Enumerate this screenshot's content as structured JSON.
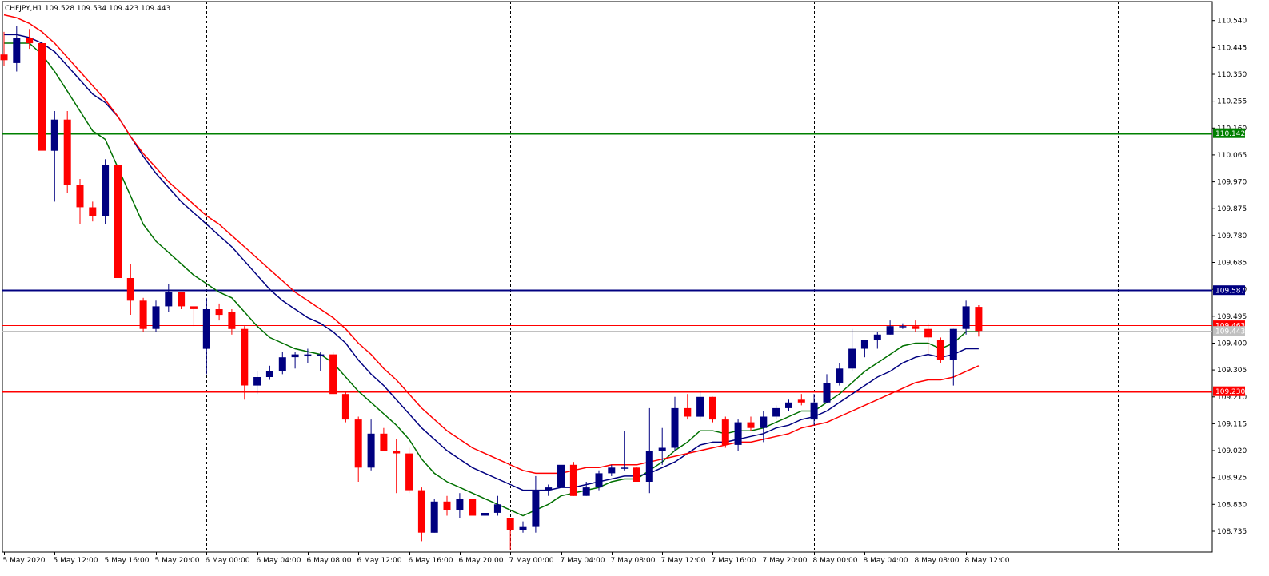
{
  "symbol_header": {
    "text": "CHFJPY,H1  109.528 109.534 109.423 109.443"
  },
  "colors": {
    "bull_candle": "#000080",
    "bear_candle": "#ff0000",
    "ma_fast": "#007000",
    "ma_mid": "#000080",
    "ma_slow": "#ff0000",
    "line_110142": "#008000",
    "line_109587": "#000080",
    "line_109230": "#ff0000",
    "bid_line": "#c0c0c0",
    "ask_line": "#ff0000"
  },
  "chart_data": {
    "type": "candlestick",
    "symbol": "CHFJPY",
    "timeframe": "H1",
    "ohlc_header": {
      "open": 109.528,
      "high": 109.534,
      "low": 109.423,
      "close": 109.443
    },
    "price_axis": {
      "range": [
        108.67,
        110.59
      ],
      "ticks": [
        "110.540",
        "110.445",
        "110.350",
        "110.255",
        "110.160",
        "110.065",
        "109.970",
        "109.875",
        "109.780",
        "109.685",
        "109.590",
        "109.495",
        "109.400",
        "109.305",
        "109.210",
        "109.115",
        "109.020",
        "108.925",
        "108.830",
        "108.735"
      ]
    },
    "time_axis": {
      "labels": [
        "5 May 2020",
        "5 May 12:00",
        "5 May 16:00",
        "5 May 20:00",
        "6 May 00:00",
        "6 May 04:00",
        "6 May 08:00",
        "6 May 12:00",
        "6 May 16:00",
        "6 May 20:00",
        "7 May 00:00",
        "7 May 04:00",
        "7 May 08:00",
        "7 May 12:00",
        "7 May 16:00",
        "7 May 20:00",
        "8 May 00:00",
        "8 May 04:00",
        "8 May 08:00",
        "8 May 12:00"
      ],
      "label_bar_index": [
        0,
        4,
        8,
        12,
        16,
        20,
        24,
        28,
        32,
        36,
        40,
        44,
        48,
        52,
        56,
        60,
        64,
        68,
        72,
        76
      ],
      "day_separators_bar_index": [
        16,
        40,
        64,
        88
      ]
    },
    "horizontal_lines": [
      {
        "price": 110.142,
        "label": "110.142",
        "color_key": "line_110142"
      },
      {
        "price": 109.587,
        "label": "109.587",
        "color_key": "line_109587"
      },
      {
        "price": 109.23,
        "label": "109.230",
        "color_key": "line_109230"
      }
    ],
    "price_labels": [
      {
        "price": 109.463,
        "label": "109.463",
        "color_key": "ask_line"
      },
      {
        "price": 109.443,
        "label": "109.443",
        "color_key": "bid_line"
      }
    ],
    "candles": [
      {
        "o": 110.42,
        "h": 110.5,
        "l": 110.38,
        "c": 110.4
      },
      {
        "o": 110.39,
        "h": 110.52,
        "l": 110.36,
        "c": 110.48
      },
      {
        "o": 110.48,
        "h": 110.51,
        "l": 110.44,
        "c": 110.46
      },
      {
        "o": 110.46,
        "h": 110.58,
        "l": 110.08,
        "c": 110.08
      },
      {
        "o": 110.08,
        "h": 110.22,
        "l": 109.9,
        "c": 110.19
      },
      {
        "o": 110.19,
        "h": 110.22,
        "l": 109.93,
        "c": 109.96
      },
      {
        "o": 109.96,
        "h": 109.98,
        "l": 109.82,
        "c": 109.88
      },
      {
        "o": 109.88,
        "h": 109.9,
        "l": 109.83,
        "c": 109.85
      },
      {
        "o": 109.85,
        "h": 110.05,
        "l": 109.82,
        "c": 110.03
      },
      {
        "o": 110.03,
        "h": 110.05,
        "l": 109.63,
        "c": 109.63
      },
      {
        "o": 109.63,
        "h": 109.68,
        "l": 109.5,
        "c": 109.55
      },
      {
        "o": 109.55,
        "h": 109.56,
        "l": 109.44,
        "c": 109.45
      },
      {
        "o": 109.45,
        "h": 109.55,
        "l": 109.44,
        "c": 109.53
      },
      {
        "o": 109.53,
        "h": 109.61,
        "l": 109.51,
        "c": 109.58
      },
      {
        "o": 109.58,
        "h": 109.58,
        "l": 109.52,
        "c": 109.53
      },
      {
        "o": 109.53,
        "h": 109.53,
        "l": 109.46,
        "c": 109.52
      },
      {
        "o": 109.38,
        "h": 109.56,
        "l": 109.29,
        "c": 109.52
      },
      {
        "o": 109.52,
        "h": 109.54,
        "l": 109.48,
        "c": 109.5
      },
      {
        "o": 109.51,
        "h": 109.52,
        "l": 109.43,
        "c": 109.45
      },
      {
        "o": 109.45,
        "h": 109.46,
        "l": 109.2,
        "c": 109.25
      },
      {
        "o": 109.25,
        "h": 109.3,
        "l": 109.22,
        "c": 109.28
      },
      {
        "o": 109.28,
        "h": 109.32,
        "l": 109.27,
        "c": 109.3
      },
      {
        "o": 109.3,
        "h": 109.37,
        "l": 109.29,
        "c": 109.35
      },
      {
        "o": 109.35,
        "h": 109.37,
        "l": 109.31,
        "c": 109.36
      },
      {
        "o": 109.36,
        "h": 109.38,
        "l": 109.33,
        "c": 109.36
      },
      {
        "o": 109.36,
        "h": 109.37,
        "l": 109.3,
        "c": 109.36
      },
      {
        "o": 109.36,
        "h": 109.37,
        "l": 109.22,
        "c": 109.22
      },
      {
        "o": 109.22,
        "h": 109.23,
        "l": 109.12,
        "c": 109.13
      },
      {
        "o": 109.13,
        "h": 109.14,
        "l": 108.91,
        "c": 108.96
      },
      {
        "o": 108.96,
        "h": 109.13,
        "l": 108.95,
        "c": 109.08
      },
      {
        "o": 109.08,
        "h": 109.1,
        "l": 109.02,
        "c": 109.02
      },
      {
        "o": 109.02,
        "h": 109.06,
        "l": 108.87,
        "c": 109.01
      },
      {
        "o": 109.01,
        "h": 109.03,
        "l": 108.87,
        "c": 108.88
      },
      {
        "o": 108.88,
        "h": 108.89,
        "l": 108.7,
        "c": 108.73
      },
      {
        "o": 108.73,
        "h": 108.85,
        "l": 108.73,
        "c": 108.84
      },
      {
        "o": 108.84,
        "h": 108.86,
        "l": 108.79,
        "c": 108.81
      },
      {
        "o": 108.81,
        "h": 108.87,
        "l": 108.78,
        "c": 108.85
      },
      {
        "o": 108.85,
        "h": 108.85,
        "l": 108.79,
        "c": 108.79
      },
      {
        "o": 108.79,
        "h": 108.81,
        "l": 108.77,
        "c": 108.8
      },
      {
        "o": 108.8,
        "h": 108.86,
        "l": 108.79,
        "c": 108.83
      },
      {
        "o": 108.78,
        "h": 108.78,
        "l": 108.67,
        "c": 108.74
      },
      {
        "o": 108.74,
        "h": 108.77,
        "l": 108.73,
        "c": 108.75
      },
      {
        "o": 108.75,
        "h": 108.93,
        "l": 108.73,
        "c": 108.88
      },
      {
        "o": 108.88,
        "h": 108.9,
        "l": 108.86,
        "c": 108.89
      },
      {
        "o": 108.89,
        "h": 108.99,
        "l": 108.86,
        "c": 108.97
      },
      {
        "o": 108.97,
        "h": 108.98,
        "l": 108.86,
        "c": 108.86
      },
      {
        "o": 108.86,
        "h": 108.91,
        "l": 108.86,
        "c": 108.89
      },
      {
        "o": 108.89,
        "h": 108.95,
        "l": 108.88,
        "c": 108.94
      },
      {
        "o": 108.94,
        "h": 108.97,
        "l": 108.93,
        "c": 108.96
      },
      {
        "o": 108.96,
        "h": 109.09,
        "l": 108.95,
        "c": 108.96
      },
      {
        "o": 108.96,
        "h": 108.96,
        "l": 108.91,
        "c": 108.91
      },
      {
        "o": 108.91,
        "h": 109.17,
        "l": 108.87,
        "c": 109.02
      },
      {
        "o": 109.02,
        "h": 109.1,
        "l": 108.97,
        "c": 109.03
      },
      {
        "o": 109.03,
        "h": 109.21,
        "l": 109.02,
        "c": 109.17
      },
      {
        "o": 109.17,
        "h": 109.22,
        "l": 109.13,
        "c": 109.14
      },
      {
        "o": 109.14,
        "h": 109.23,
        "l": 109.13,
        "c": 109.21
      },
      {
        "o": 109.21,
        "h": 109.21,
        "l": 109.12,
        "c": 109.13
      },
      {
        "o": 109.13,
        "h": 109.14,
        "l": 109.03,
        "c": 109.04
      },
      {
        "o": 109.04,
        "h": 109.13,
        "l": 109.02,
        "c": 109.12
      },
      {
        "o": 109.12,
        "h": 109.14,
        "l": 109.09,
        "c": 109.1
      },
      {
        "o": 109.1,
        "h": 109.16,
        "l": 109.05,
        "c": 109.14
      },
      {
        "o": 109.14,
        "h": 109.18,
        "l": 109.13,
        "c": 109.17
      },
      {
        "o": 109.17,
        "h": 109.2,
        "l": 109.16,
        "c": 109.19
      },
      {
        "o": 109.2,
        "h": 109.22,
        "l": 109.18,
        "c": 109.19
      },
      {
        "o": 109.13,
        "h": 109.22,
        "l": 109.11,
        "c": 109.19
      },
      {
        "o": 109.19,
        "h": 109.29,
        "l": 109.19,
        "c": 109.26
      },
      {
        "o": 109.26,
        "h": 109.33,
        "l": 109.25,
        "c": 109.31
      },
      {
        "o": 109.31,
        "h": 109.45,
        "l": 109.3,
        "c": 109.38
      },
      {
        "o": 109.38,
        "h": 109.41,
        "l": 109.35,
        "c": 109.41
      },
      {
        "o": 109.41,
        "h": 109.44,
        "l": 109.38,
        "c": 109.43
      },
      {
        "o": 109.43,
        "h": 109.48,
        "l": 109.43,
        "c": 109.46
      },
      {
        "o": 109.46,
        "h": 109.47,
        "l": 109.45,
        "c": 109.46
      },
      {
        "o": 109.46,
        "h": 109.48,
        "l": 109.44,
        "c": 109.45
      },
      {
        "o": 109.45,
        "h": 109.47,
        "l": 109.36,
        "c": 109.42
      },
      {
        "o": 109.41,
        "h": 109.42,
        "l": 109.33,
        "c": 109.34
      },
      {
        "o": 109.34,
        "h": 109.45,
        "l": 109.25,
        "c": 109.45
      },
      {
        "o": 109.45,
        "h": 109.55,
        "l": 109.43,
        "c": 109.53
      },
      {
        "o": 109.528,
        "h": 109.534,
        "l": 109.423,
        "c": 109.443
      }
    ],
    "moving_averages": [
      {
        "color_key": "ma_fast",
        "values": [
          110.46,
          110.46,
          110.46,
          110.42,
          110.36,
          110.29,
          110.22,
          110.15,
          110.12,
          110.02,
          109.92,
          109.82,
          109.76,
          109.72,
          109.68,
          109.64,
          109.61,
          109.58,
          109.56,
          109.51,
          109.46,
          109.42,
          109.4,
          109.38,
          109.37,
          109.36,
          109.33,
          109.28,
          109.23,
          109.19,
          109.15,
          109.11,
          109.06,
          108.99,
          108.94,
          108.91,
          108.89,
          108.87,
          108.85,
          108.83,
          108.81,
          108.79,
          108.81,
          108.83,
          108.86,
          108.87,
          108.88,
          108.89,
          108.91,
          108.92,
          108.92,
          108.95,
          108.98,
          109.02,
          109.05,
          109.09,
          109.09,
          109.08,
          109.09,
          109.09,
          109.1,
          109.12,
          109.14,
          109.16,
          109.16,
          109.19,
          109.22,
          109.26,
          109.3,
          109.33,
          109.36,
          109.39,
          109.4,
          109.4,
          109.38,
          109.4,
          109.44,
          109.44
        ]
      },
      {
        "color_key": "ma_mid",
        "values": [
          110.49,
          110.49,
          110.48,
          110.46,
          110.43,
          110.38,
          110.33,
          110.28,
          110.25,
          110.2,
          110.13,
          110.06,
          110.0,
          109.95,
          109.9,
          109.86,
          109.82,
          109.78,
          109.74,
          109.69,
          109.64,
          109.59,
          109.55,
          109.52,
          109.49,
          109.47,
          109.44,
          109.4,
          109.34,
          109.29,
          109.25,
          109.2,
          109.15,
          109.1,
          109.06,
          109.02,
          108.99,
          108.96,
          108.94,
          108.92,
          108.9,
          108.88,
          108.88,
          108.88,
          108.89,
          108.89,
          108.9,
          108.91,
          108.92,
          108.93,
          108.93,
          108.94,
          108.96,
          108.98,
          109.01,
          109.04,
          109.05,
          109.05,
          109.06,
          109.07,
          109.08,
          109.1,
          109.11,
          109.13,
          109.14,
          109.16,
          109.19,
          109.22,
          109.25,
          109.28,
          109.3,
          109.33,
          109.35,
          109.36,
          109.35,
          109.36,
          109.38,
          109.38
        ]
      },
      {
        "color_key": "ma_slow",
        "values": [
          110.56,
          110.55,
          110.53,
          110.5,
          110.46,
          110.41,
          110.36,
          110.31,
          110.26,
          110.2,
          110.13,
          110.07,
          110.02,
          109.97,
          109.93,
          109.89,
          109.85,
          109.82,
          109.78,
          109.74,
          109.7,
          109.66,
          109.62,
          109.58,
          109.55,
          109.52,
          109.49,
          109.45,
          109.4,
          109.36,
          109.31,
          109.27,
          109.22,
          109.17,
          109.13,
          109.09,
          109.06,
          109.03,
          109.01,
          108.99,
          108.97,
          108.95,
          108.94,
          108.94,
          108.94,
          108.95,
          108.96,
          108.96,
          108.97,
          108.97,
          108.97,
          108.98,
          108.99,
          109.0,
          109.01,
          109.02,
          109.03,
          109.04,
          109.05,
          109.05,
          109.06,
          109.07,
          109.08,
          109.1,
          109.11,
          109.12,
          109.14,
          109.16,
          109.18,
          109.2,
          109.22,
          109.24,
          109.26,
          109.27,
          109.27,
          109.28,
          109.3,
          109.32
        ]
      }
    ]
  }
}
